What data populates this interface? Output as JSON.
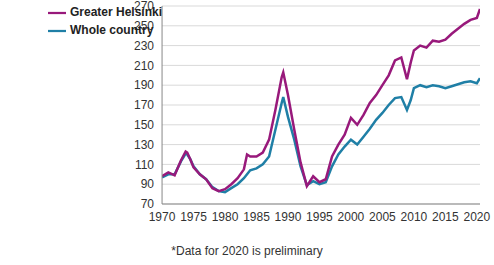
{
  "chart_data": {
    "type": "line",
    "annotation": "*Data for 2020 is preliminary",
    "x": [
      1970,
      1971,
      1972,
      1973,
      1973.75,
      1974,
      1974.5,
      1975,
      1976,
      1977,
      1978,
      1979,
      1980,
      1981,
      1982,
      1983,
      1983.5,
      1984,
      1985,
      1986,
      1987,
      1988,
      1989,
      1989.25,
      1990,
      1991,
      1992,
      1993,
      1994,
      1995,
      1996,
      1997,
      1998,
      1999,
      2000,
      2001,
      2002,
      2003,
      2004,
      2005,
      2006,
      2007,
      2008,
      2008.9,
      2009.5,
      2010,
      2011,
      2012,
      2013,
      2014,
      2015,
      2016,
      2017,
      2018,
      2019,
      2020,
      2020.5
    ],
    "series": [
      {
        "name": "Whole country",
        "color": "#1f7fa6",
        "values": [
          97,
          100,
          100,
          113,
          121,
          120,
          115,
          108,
          100,
          95,
          87,
          83,
          82,
          86,
          90,
          96,
          100,
          104,
          106,
          110,
          118,
          145,
          172,
          178,
          158,
          135,
          108,
          89,
          93,
          90,
          92,
          108,
          120,
          128,
          135,
          130,
          138,
          146,
          155,
          162,
          170,
          177,
          178,
          165,
          175,
          187,
          190,
          188,
          190,
          189,
          187,
          189,
          191,
          193,
          194,
          192,
          197
        ]
      },
      {
        "name": "Greater Helsinki",
        "color": "#98197b",
        "values": [
          98,
          102,
          99,
          114,
          123,
          122,
          115,
          107,
          100,
          95,
          86,
          83,
          85,
          90,
          96,
          105,
          120,
          118,
          118,
          122,
          135,
          165,
          198,
          203,
          180,
          145,
          112,
          88,
          98,
          92,
          95,
          118,
          130,
          140,
          157,
          150,
          160,
          172,
          180,
          190,
          200,
          215,
          218,
          196,
          213,
          225,
          230,
          228,
          235,
          234,
          236,
          242,
          247,
          252,
          256,
          258,
          267
        ]
      }
    ],
    "xlim": [
      1970,
      2020.5
    ],
    "xticks": [
      1970,
      1975,
      1980,
      1985,
      1990,
      1995,
      2000,
      2005,
      2010,
      2015,
      2020
    ],
    "ylim": [
      70,
      270
    ],
    "yticks": [
      70,
      90,
      110,
      130,
      150,
      170,
      190,
      210,
      230,
      250,
      270
    ],
    "grid": true,
    "legend": "top-left"
  }
}
